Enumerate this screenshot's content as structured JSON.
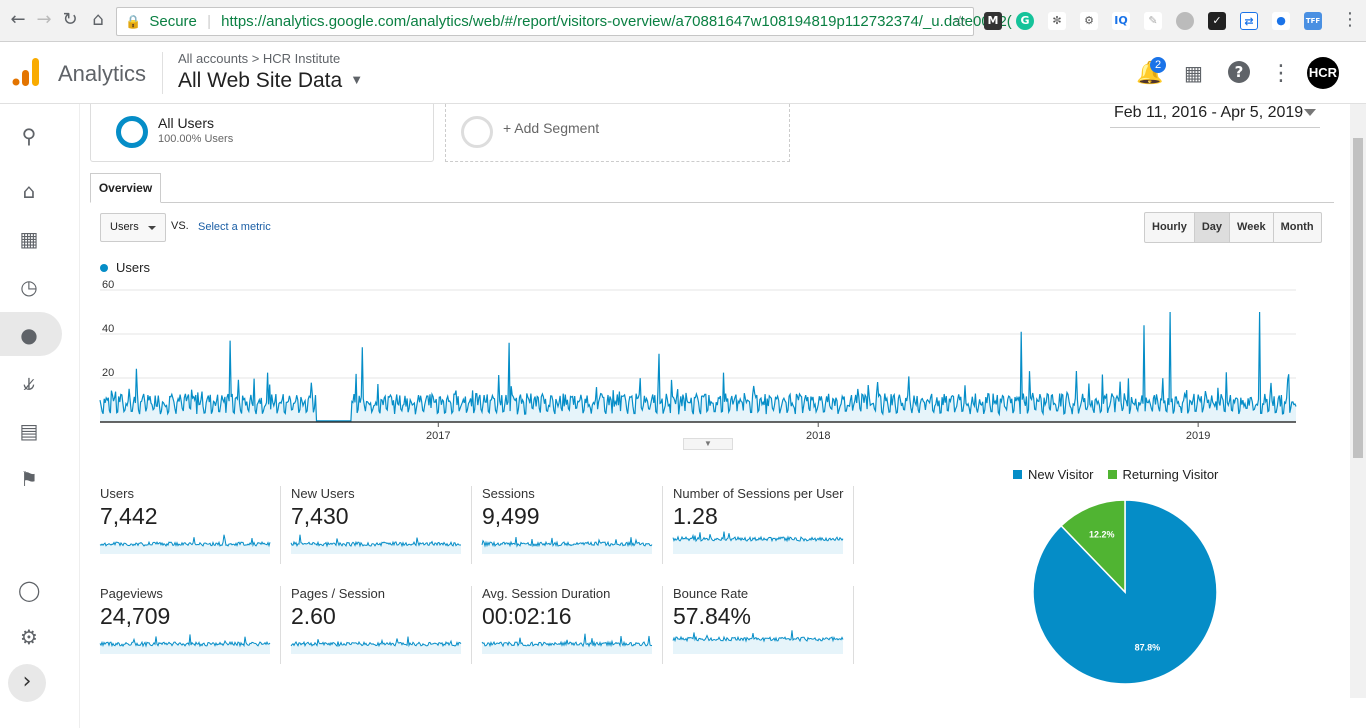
{
  "browser": {
    "secure_label": "Secure",
    "url": "https://analytics.google.com/analytics/web/#/report/visitors-overview/a70881647w108194819p112732374/_u.date00=2("
  },
  "header": {
    "app_name": "Analytics",
    "breadcrumb": "All accounts > HCR Institute",
    "view_name": "All Web Site Data",
    "notification_count": "2",
    "avatar_text": "HCR"
  },
  "segments": {
    "all_users_label": "All Users",
    "all_users_pct": "100.00% Users",
    "add_segment": "+ Add Segment"
  },
  "date_range": "Feb 11, 2016 - Apr 5, 2019",
  "tabs": {
    "overview": "Overview"
  },
  "controls": {
    "metric": "Users",
    "vs": "VS.",
    "select_metric": "Select a metric",
    "granularity": [
      "Hourly",
      "Day",
      "Week",
      "Month"
    ],
    "active_granularity": "Day"
  },
  "chart_data": {
    "type": "area",
    "series": [
      {
        "name": "Users"
      }
    ],
    "y_ticks": [
      "60",
      "40",
      "20"
    ],
    "x_ticks": [
      "2017",
      "2018",
      "2019"
    ],
    "ylim": [
      0,
      60
    ],
    "x_range_dates": [
      "2016-02-11",
      "2019-04-05"
    ],
    "color": "#058dc7",
    "peaks": [
      {
        "date": "2016-06-15",
        "value": 37
      },
      {
        "date": "2016-10-20",
        "value": 34
      },
      {
        "date": "2017-03-10",
        "value": 36
      },
      {
        "date": "2017-08-01",
        "value": 31
      },
      {
        "date": "2018-07-15",
        "value": 41
      },
      {
        "date": "2018-11-10",
        "value": 44
      },
      {
        "date": "2018-12-05",
        "value": 50
      },
      {
        "date": "2019-03-01",
        "value": 50
      }
    ]
  },
  "metrics": [
    {
      "label": "Users",
      "value": "7,442"
    },
    {
      "label": "New Users",
      "value": "7,430"
    },
    {
      "label": "Sessions",
      "value": "9,499"
    },
    {
      "label": "Number of Sessions per User",
      "value": "1.28"
    },
    {
      "label": "Pageviews",
      "value": "24,709"
    },
    {
      "label": "Pages / Session",
      "value": "2.60"
    },
    {
      "label": "Avg. Session Duration",
      "value": "00:02:16"
    },
    {
      "label": "Bounce Rate",
      "value": "57.84%"
    }
  ],
  "pie": {
    "legend": [
      "New Visitor",
      "Returning Visitor"
    ],
    "colors": [
      "#058dc7",
      "#50b432"
    ],
    "values": [
      87.8,
      12.2
    ],
    "labels": [
      "87.8%",
      "12.2%"
    ]
  }
}
